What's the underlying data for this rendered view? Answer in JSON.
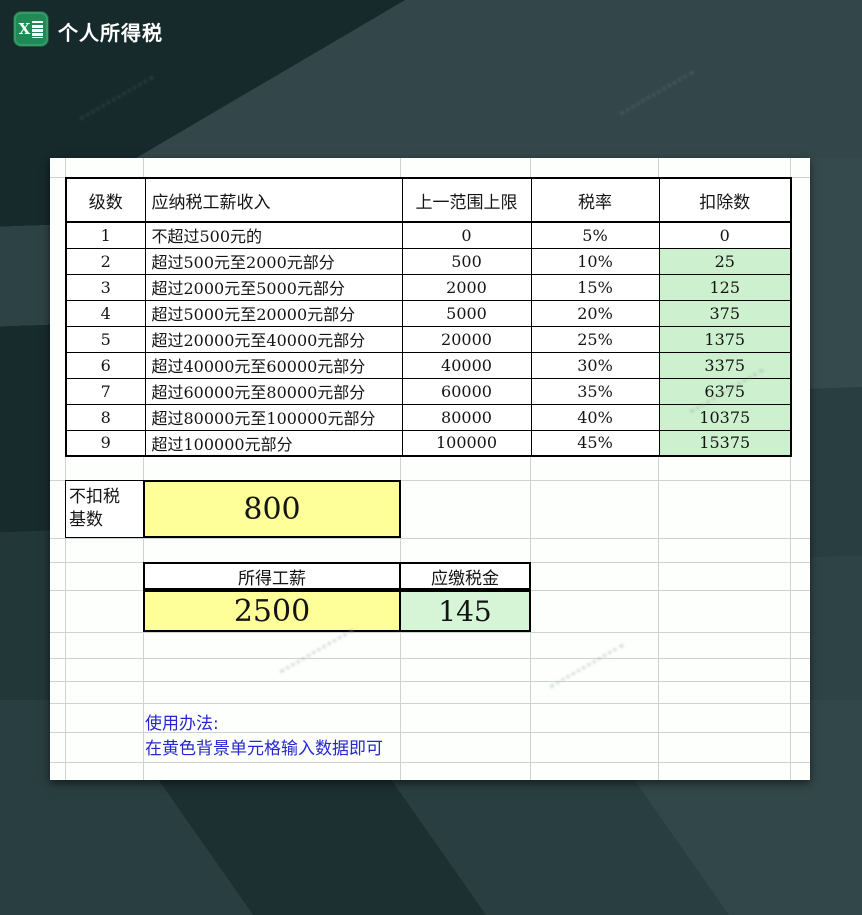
{
  "window": {
    "title": "个人所得税",
    "icon": "excel-icon"
  },
  "colors": {
    "input_yellow": "#ffff99",
    "result_green": "#cdf0ce",
    "instruction_blue": "#2727cc",
    "excel_green": "#1f8a55",
    "bg_dark": "#16292b",
    "bg_mid": "#293e40",
    "bg_light": "#354a4c"
  },
  "tax_table": {
    "headers": [
      "级数",
      "应纳税工薪收入",
      "上一范围上限",
      "税率",
      "扣除数"
    ],
    "rows": [
      {
        "level": "1",
        "desc": "不超过500元的",
        "limit": "0",
        "rate": "5%",
        "deduction": "0",
        "green": false
      },
      {
        "level": "2",
        "desc": "超过500元至2000元部分",
        "limit": "500",
        "rate": "10%",
        "deduction": "25",
        "green": true
      },
      {
        "level": "3",
        "desc": "超过2000元至5000元部分",
        "limit": "2000",
        "rate": "15%",
        "deduction": "125",
        "green": true
      },
      {
        "level": "4",
        "desc": "超过5000元至20000元部分",
        "limit": "5000",
        "rate": "20%",
        "deduction": "375",
        "green": true
      },
      {
        "level": "5",
        "desc": "超过20000元至40000元部分",
        "limit": "20000",
        "rate": "25%",
        "deduction": "1375",
        "green": true
      },
      {
        "level": "6",
        "desc": "超过40000元至60000元部分",
        "limit": "40000",
        "rate": "30%",
        "deduction": "3375",
        "green": true
      },
      {
        "level": "7",
        "desc": "超过60000元至80000元部分",
        "limit": "60000",
        "rate": "35%",
        "deduction": "6375",
        "green": true
      },
      {
        "level": "8",
        "desc": "超过80000元至100000元部分",
        "limit": "80000",
        "rate": "40%",
        "deduction": "10375",
        "green": true
      },
      {
        "level": "9",
        "desc": "超过100000元部分",
        "limit": "100000",
        "rate": "45%",
        "deduction": "15375",
        "green": true
      }
    ]
  },
  "base_section": {
    "label_lines": [
      "不扣税",
      "基数"
    ],
    "value": "800"
  },
  "calc_section": {
    "income_header": "所得工薪",
    "tax_header": "应缴税金",
    "income_value": "2500",
    "tax_value": "145"
  },
  "instructions": {
    "line1": "使用办法:",
    "line2": "在黄色背景单元格输入数据即可"
  }
}
